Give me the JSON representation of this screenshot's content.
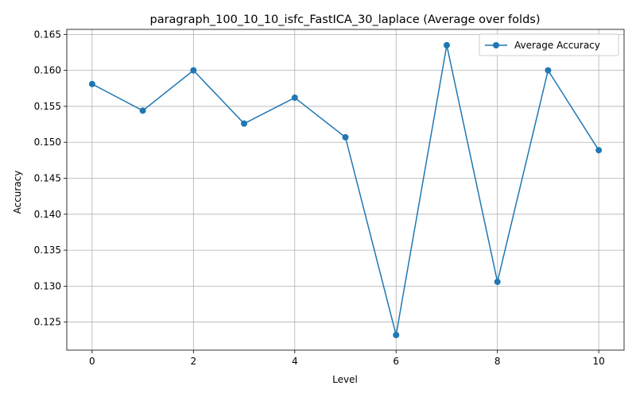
{
  "chart_data": {
    "type": "line",
    "title": "paragraph_100_10_10_isfc_FastICA_30_laplace (Average over folds)",
    "xlabel": "Level",
    "ylabel": "Accuracy",
    "xlim": [
      -0.5,
      10.5
    ],
    "ylim": [
      0.1211,
      0.1657
    ],
    "xticks": [
      0,
      2,
      4,
      6,
      8,
      10
    ],
    "yticks": [
      0.125,
      0.13,
      0.135,
      0.14,
      0.145,
      0.15,
      0.155,
      0.16,
      0.165
    ],
    "ytick_labels": [
      "0.125",
      "0.130",
      "0.135",
      "0.140",
      "0.145",
      "0.150",
      "0.155",
      "0.160",
      "0.165"
    ],
    "grid": true,
    "legend_position": "top-right",
    "color": "#1f77b4",
    "series": [
      {
        "name": "Average Accuracy",
        "x": [
          0,
          1,
          2,
          3,
          4,
          5,
          6,
          7,
          8,
          9,
          10
        ],
        "values": [
          0.1581,
          0.1544,
          0.16,
          0.1526,
          0.1562,
          0.1507,
          0.1232,
          0.1635,
          0.1306,
          0.16,
          0.1489
        ]
      }
    ]
  }
}
